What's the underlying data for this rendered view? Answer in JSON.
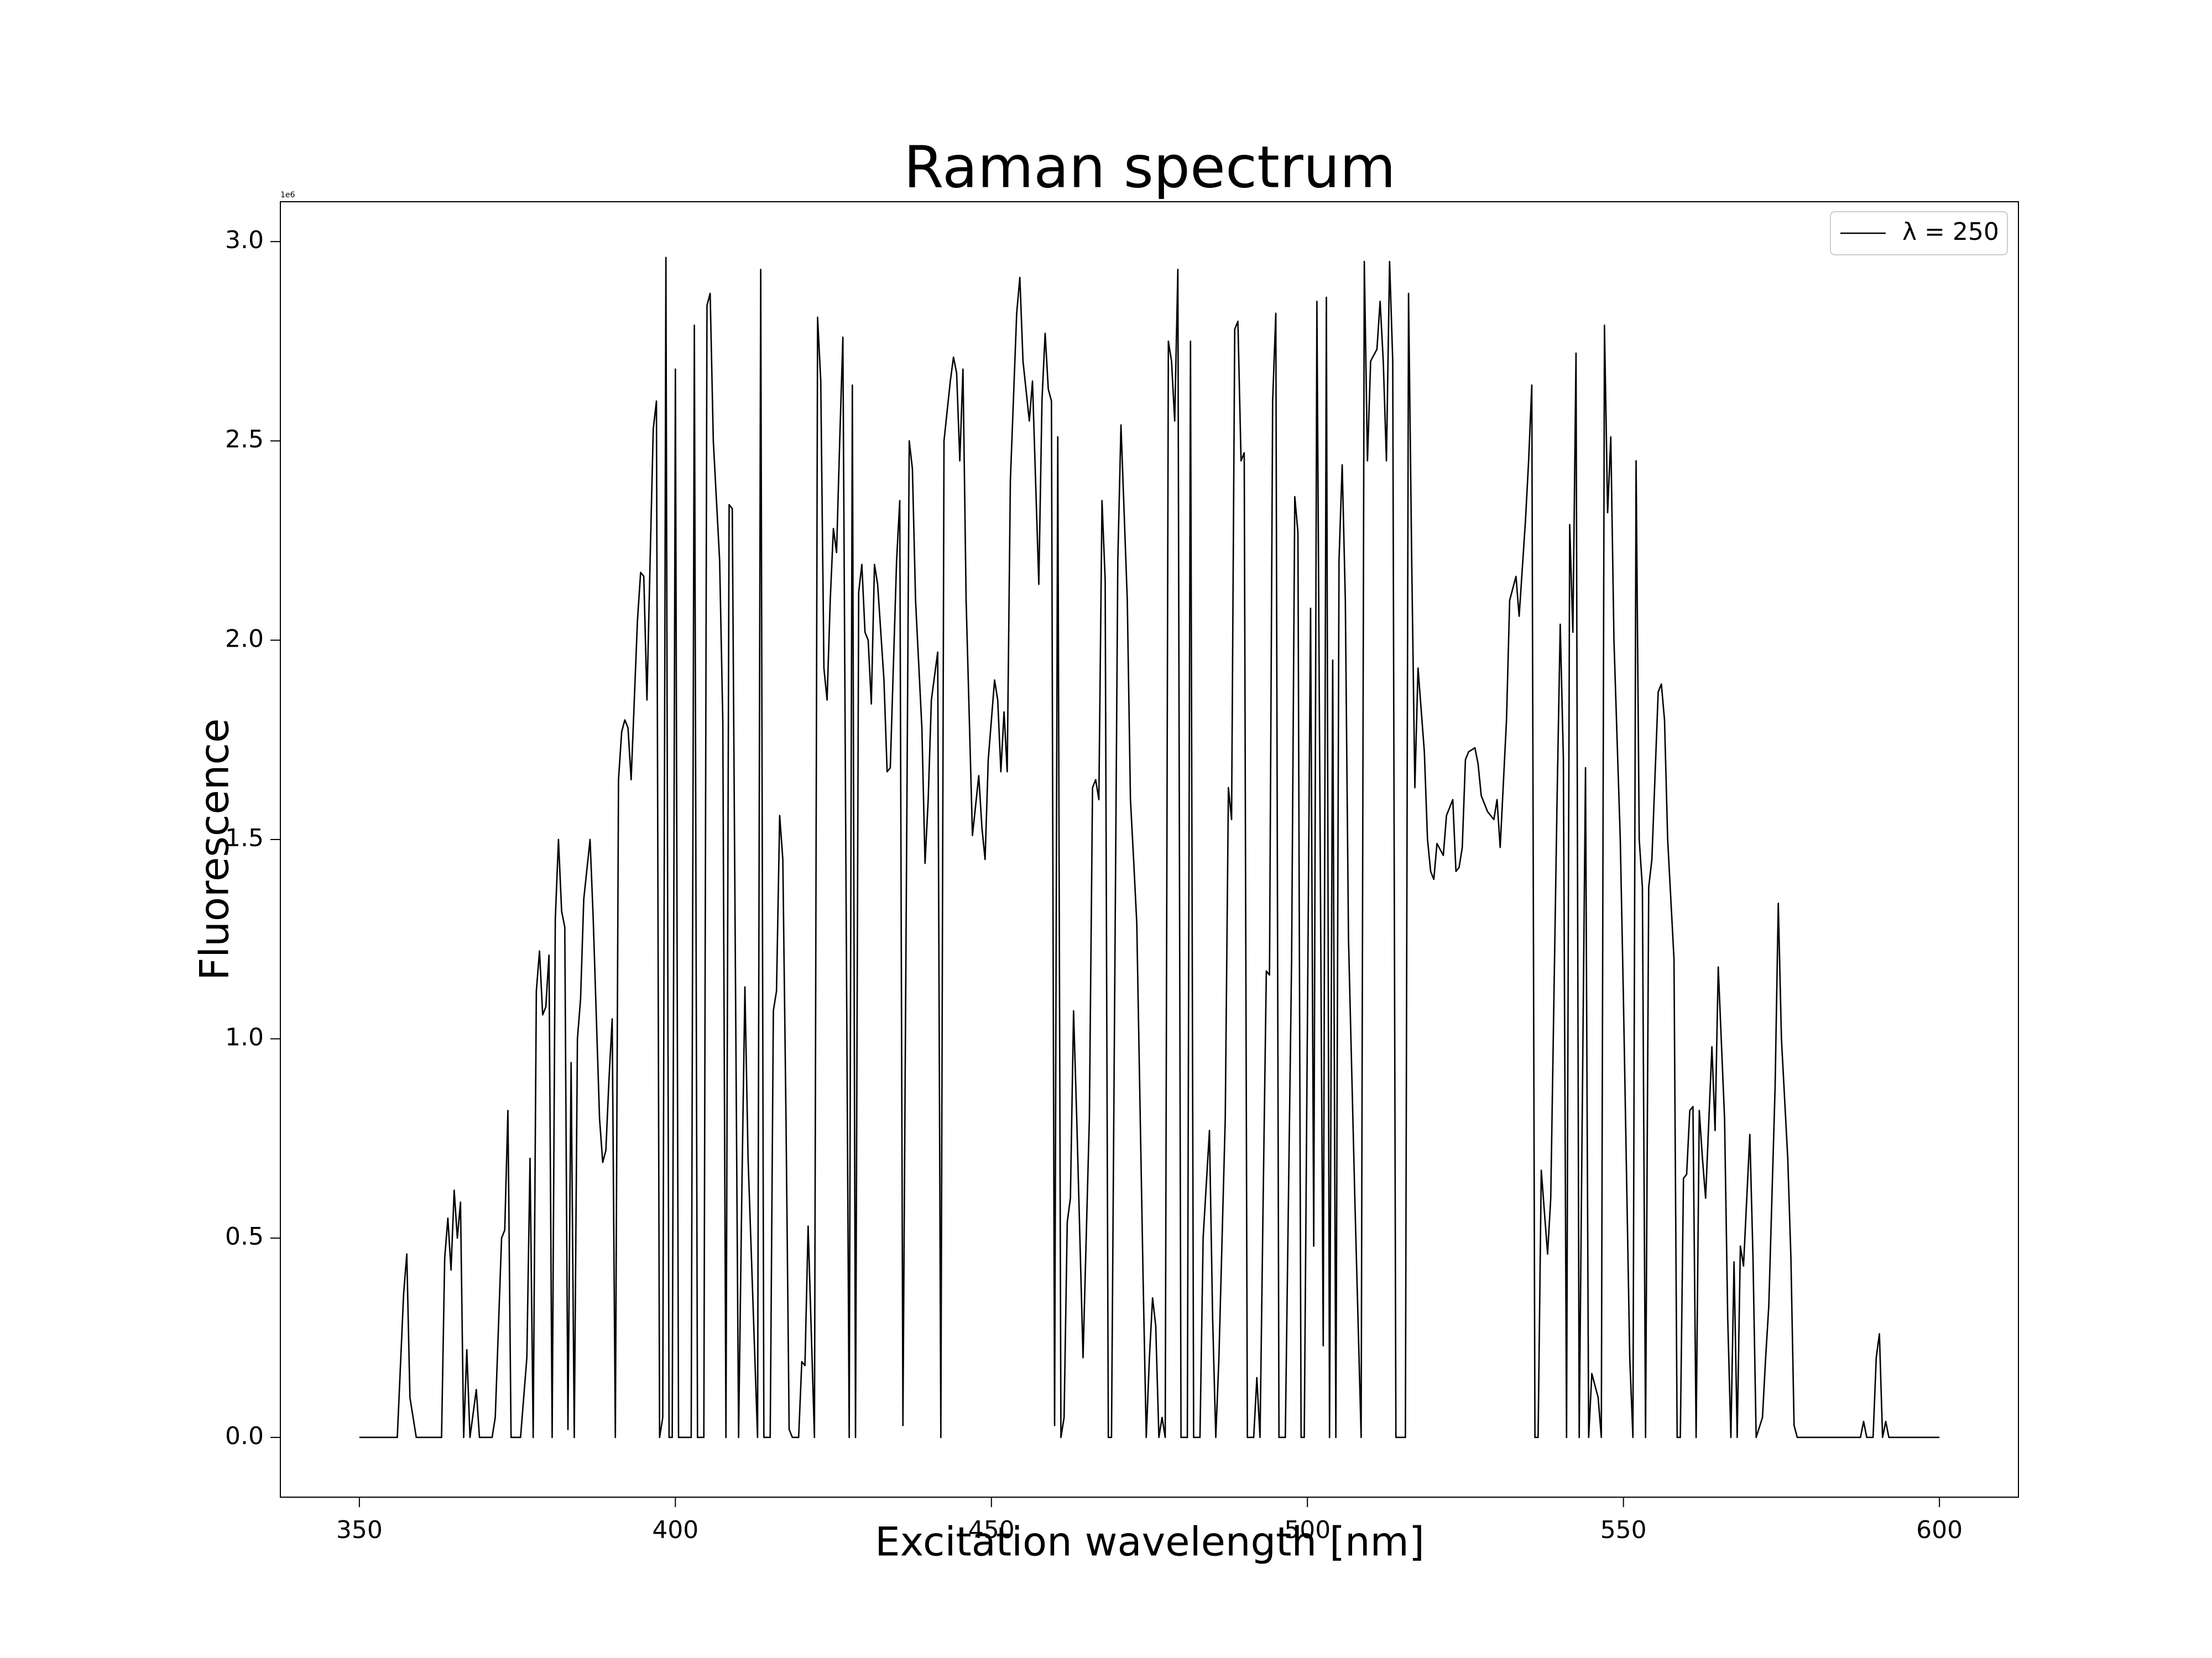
{
  "chart_data": {
    "type": "line",
    "title": "Raman spectrum",
    "xlabel": "Excitation wavelength [nm]",
    "ylabel": "Fluorescence",
    "y_offset_label": "1e6",
    "legend": "upper right",
    "grid": false,
    "x": [
      350,
      356,
      357,
      357.5,
      358,
      359,
      363,
      363.5,
      364,
      364.5,
      365,
      365.5,
      366,
      366.5,
      367,
      367.5,
      368.5,
      369,
      371,
      371.5,
      372.5,
      373,
      373.5,
      374,
      375.5,
      376.5,
      377,
      377.5,
      378,
      378.5,
      379,
      379.5,
      380,
      380.5,
      381,
      381.5,
      382,
      382.5,
      383,
      383.5,
      384,
      384.5,
      385,
      385.5,
      386.5,
      387,
      388,
      388.5,
      389,
      389.5,
      390,
      390.5,
      391,
      391.5,
      392,
      392.5,
      393,
      394,
      394.5,
      395,
      395.5,
      396,
      396.5,
      397,
      397.5,
      398,
      398.5,
      399,
      399.5,
      400,
      400.5,
      402.5,
      403,
      403.5,
      404.5,
      405,
      405.5,
      406,
      407,
      407.5,
      408,
      408.5,
      409,
      410,
      410.5,
      411,
      411.5,
      413,
      413.5,
      414,
      415,
      415.5,
      416,
      416.5,
      417,
      417.5,
      418,
      418.5,
      419.5,
      420,
      420.5,
      421,
      422,
      422.5,
      423,
      423.5,
      424,
      424.5,
      425,
      425.5,
      426,
      426.5,
      427.5,
      428,
      428.5,
      429,
      429.5,
      430,
      430.5,
      431,
      431.5,
      432,
      433,
      433.5,
      434,
      435,
      435.5,
      436,
      437,
      437.5,
      438,
      439,
      439.5,
      440,
      440.5,
      441.5,
      442,
      442.5,
      443.5,
      444,
      444.5,
      445,
      445.5,
      446,
      447,
      448,
      448.5,
      449,
      449.5,
      450.5,
      451,
      451.5,
      452,
      452.5,
      453,
      454,
      454.5,
      455,
      456,
      456.5,
      457.5,
      458,
      458.5,
      459,
      459.5,
      460,
      460.5,
      461,
      461.5,
      462,
      462.5,
      463,
      463.5,
      464.5,
      465.5,
      466,
      466.5,
      467,
      467.5,
      468,
      468.5,
      469,
      470,
      470.5,
      471.5,
      472,
      472.5,
      473,
      474,
      474.5,
      475,
      475.5,
      476,
      476.5,
      477,
      477.5,
      478,
      478.5,
      479,
      479.5,
      480,
      481,
      481.5,
      482,
      483,
      483.5,
      484.5,
      485,
      485.5,
      486,
      487,
      487.5,
      488,
      488.5,
      489,
      489.5,
      490,
      490.5,
      491.5,
      492,
      492.5,
      493,
      493.5,
      494,
      494.5,
      495,
      495.5,
      496.5,
      497.5,
      498,
      498.5,
      499,
      499.5,
      500.5,
      501,
      501.5,
      502.5,
      503,
      503.5,
      504,
      504.5,
      505,
      505.5,
      506,
      506.5,
      507.5,
      508.5,
      509,
      509.5,
      510,
      511,
      511.5,
      512,
      512.5,
      513,
      513.5,
      514,
      515.5,
      516,
      516.5,
      517,
      517.5,
      518.5,
      519,
      519.5,
      520,
      520.5,
      521.5,
      522,
      523,
      523.5,
      524,
      524.5,
      525,
      525.5,
      526.5,
      527,
      527.5,
      528.5,
      529,
      529.5,
      530,
      530.5,
      531.5,
      532,
      533,
      533.5,
      534.5,
      535,
      535.5,
      536,
      536.5,
      537,
      538,
      538.5,
      539.5,
      540,
      540.5,
      541,
      541.5,
      542,
      542.5,
      543,
      544,
      544.5,
      545,
      546,
      546.5,
      547,
      547.5,
      548,
      548.5,
      549.5,
      550,
      551,
      551.5,
      552,
      552.5,
      553,
      553.5,
      554,
      554.5,
      555.5,
      556,
      556.5,
      557,
      558,
      558.5,
      559,
      559.5,
      560,
      560.5,
      561,
      561.5,
      562,
      562.5,
      563,
      564,
      564.5,
      565,
      566,
      566.5,
      567,
      567.5,
      568,
      568.5,
      569,
      570,
      570.5,
      571,
      572,
      572.5,
      573,
      574,
      574.5,
      575,
      576,
      576.5,
      577,
      577.5,
      587.5,
      588,
      588.5,
      589.5,
      590,
      590.5,
      591,
      591.5,
      592,
      600
    ],
    "series": [
      {
        "name": "λ = 250",
        "color": "#000000",
        "values": [
          0,
          0,
          0.36,
          0.46,
          0.1,
          0,
          0,
          0.45,
          0.55,
          0.42,
          0.62,
          0.5,
          0.59,
          0,
          0.22,
          0,
          0.12,
          0,
          0,
          0.05,
          0.5,
          0.52,
          0.82,
          0,
          0,
          0.2,
          0.7,
          0,
          1.12,
          1.22,
          1.06,
          1.08,
          1.21,
          0,
          1.3,
          1.5,
          1.32,
          1.28,
          0.02,
          0.94,
          0,
          1.0,
          1.1,
          1.35,
          1.5,
          1.3,
          0.8,
          0.69,
          0.72,
          0.9,
          1.05,
          0,
          1.65,
          1.77,
          1.8,
          1.78,
          1.65,
          2.05,
          2.17,
          2.16,
          1.85,
          2.2,
          2.53,
          2.6,
          0,
          0.05,
          2.96,
          0,
          0,
          2.68,
          0,
          0,
          2.79,
          0,
          0,
          2.84,
          2.87,
          2.5,
          2.2,
          1.8,
          0,
          2.34,
          2.33,
          0,
          0.6,
          1.13,
          0.7,
          0,
          2.93,
          0,
          0,
          1.07,
          1.12,
          1.56,
          1.45,
          0.8,
          0.02,
          0,
          0,
          0.19,
          0.18,
          0.53,
          0,
          2.81,
          2.65,
          1.93,
          1.85,
          2.1,
          2.28,
          2.22,
          2.5,
          2.76,
          0,
          2.64,
          0,
          2.12,
          2.19,
          2.02,
          2.0,
          1.84,
          2.19,
          2.14,
          1.9,
          1.67,
          1.68,
          2.2,
          2.35,
          0.03,
          2.5,
          2.43,
          2.1,
          1.78,
          1.44,
          1.6,
          1.85,
          1.97,
          0,
          2.5,
          2.65,
          2.71,
          2.67,
          2.45,
          2.68,
          2.1,
          1.51,
          1.66,
          1.53,
          1.45,
          1.7,
          1.9,
          1.85,
          1.67,
          1.82,
          1.67,
          2.4,
          2.82,
          2.91,
          2.7,
          2.55,
          2.65,
          2.14,
          2.6,
          2.77,
          2.63,
          2.6,
          0.03,
          2.51,
          0,
          0.05,
          0.54,
          0.6,
          1.07,
          0.8,
          0.2,
          0.8,
          1.63,
          1.65,
          1.6,
          2.35,
          2.15,
          0,
          0,
          2.2,
          2.54,
          2.1,
          1.6,
          1.45,
          1.29,
          0.4,
          0,
          0.2,
          0.35,
          0.28,
          0,
          0.05,
          0,
          2.75,
          2.7,
          2.55,
          2.93,
          0,
          0,
          2.75,
          0,
          0,
          0.5,
          0.77,
          0.3,
          0,
          0.2,
          0.8,
          1.63,
          1.55,
          2.78,
          2.8,
          2.45,
          2.47,
          0,
          0,
          0.15,
          0,
          0.6,
          1.17,
          1.16,
          2.6,
          2.82,
          0,
          0,
          1.2,
          2.36,
          2.27,
          0,
          0,
          2.08,
          0.48,
          2.85,
          0.23,
          2.86,
          0,
          1.95,
          0,
          2.2,
          2.44,
          2.1,
          1.25,
          0.6,
          0,
          2.95,
          2.45,
          2.7,
          2.73,
          2.85,
          2.7,
          2.45,
          2.95,
          2.7,
          0,
          0,
          2.87,
          2.2,
          1.63,
          1.93,
          1.72,
          1.5,
          1.42,
          1.4,
          1.49,
          1.46,
          1.56,
          1.6,
          1.42,
          1.43,
          1.48,
          1.7,
          1.72,
          1.73,
          1.69,
          1.61,
          1.57,
          1.56,
          1.55,
          1.6,
          1.48,
          1.8,
          2.1,
          2.16,
          2.06,
          2.3,
          2.45,
          2.64,
          0,
          0,
          0.67,
          0.46,
          0.6,
          1.6,
          2.04,
          1.7,
          0,
          2.29,
          2.02,
          2.72,
          0,
          1.68,
          0,
          0.16,
          0.1,
          0,
          2.79,
          2.32,
          2.51,
          2.0,
          1.5,
          1.1,
          0.2,
          0,
          2.45,
          1.5,
          1.38,
          0,
          1.38,
          1.45,
          1.87,
          1.89,
          1.8,
          1.5,
          1.2,
          0,
          0,
          0.65,
          0.66,
          0.82,
          0.83,
          0,
          0.82,
          0.7,
          0.6,
          0.98,
          0.77,
          1.18,
          0.8,
          0.3,
          0,
          0.44,
          0,
          0.48,
          0.43,
          0.76,
          0.45,
          0,
          0.05,
          0.2,
          0.33,
          0.88,
          1.34,
          1.0,
          0.7,
          0.45,
          0.03,
          0,
          0,
          0.04,
          0,
          0,
          0.2,
          0.26,
          0,
          0.04,
          0,
          0
        ]
      }
    ],
    "xlim": [
      337.5,
      612.5
    ],
    "xticks": [
      350,
      400,
      450,
      500,
      550,
      600
    ],
    "ylim": [
      -0.15,
      3.1
    ],
    "yticks": [
      {
        "value": 0,
        "label": "0.0"
      },
      0.5,
      {
        "value": 1,
        "label": "1.0"
      },
      1.5,
      {
        "value": 2,
        "label": "2.0"
      },
      2.5,
      {
        "value": 3,
        "label": "3.0"
      }
    ]
  }
}
